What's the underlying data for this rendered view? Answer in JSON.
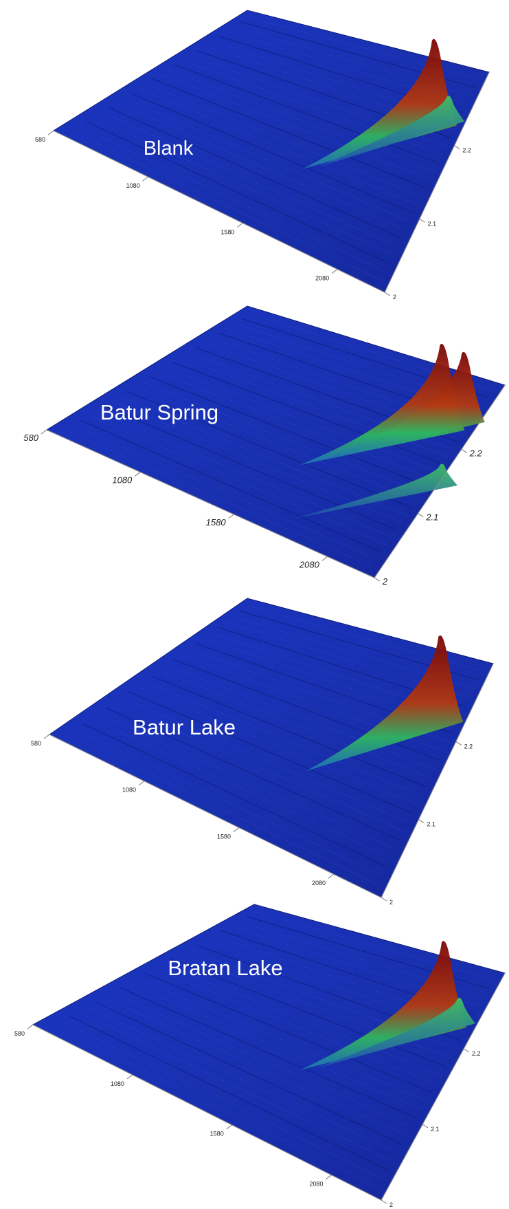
{
  "chart_data": [
    {
      "type": "surface",
      "title": "Blank",
      "x_ticks": [
        "580",
        "1080",
        "1580",
        "2080"
      ],
      "y_ticks": [
        "2",
        "2.1",
        "2.2"
      ],
      "peaks": [
        {
          "x": 2170,
          "y": 2.22,
          "z": 1.0,
          "color": "red"
        },
        {
          "x": 2230,
          "y": 2.23,
          "z": 0.25,
          "color": "green"
        }
      ]
    },
    {
      "type": "surface",
      "title": "Batur Spring",
      "x_ticks": [
        "580",
        "1080",
        "1580",
        "2080"
      ],
      "y_ticks": [
        "2",
        "2.1",
        "2.2"
      ],
      "peaks": [
        {
          "x": 2170,
          "y": 2.22,
          "z": 1.0,
          "color": "red"
        },
        {
          "x": 2250,
          "y": 2.24,
          "z": 0.8,
          "color": "red"
        },
        {
          "x": 2350,
          "y": 2.15,
          "z": 0.2,
          "color": "green"
        }
      ]
    },
    {
      "type": "surface",
      "title": "Batur Lake",
      "x_ticks": [
        "580",
        "1080",
        "1580",
        "2080"
      ],
      "y_ticks": [
        "2",
        "2.1",
        "2.2"
      ],
      "peaks": [
        {
          "x": 2200,
          "y": 2.22,
          "z": 1.0,
          "color": "red"
        }
      ]
    },
    {
      "type": "surface",
      "title": "Bratan Lake",
      "x_ticks": [
        "580",
        "1080",
        "1580",
        "2080"
      ],
      "y_ticks": [
        "2",
        "2.1",
        "2.2"
      ],
      "peaks": [
        {
          "x": 2170,
          "y": 2.22,
          "z": 1.0,
          "color": "red"
        },
        {
          "x": 2230,
          "y": 2.23,
          "z": 0.25,
          "color": "green"
        }
      ]
    }
  ],
  "colors": {
    "surface": "#1b35b8",
    "surface_dark": "#0c1f86",
    "peak_red": "#9c0d0d",
    "peak_green": "#2aa35a",
    "label": "#ffffff"
  }
}
